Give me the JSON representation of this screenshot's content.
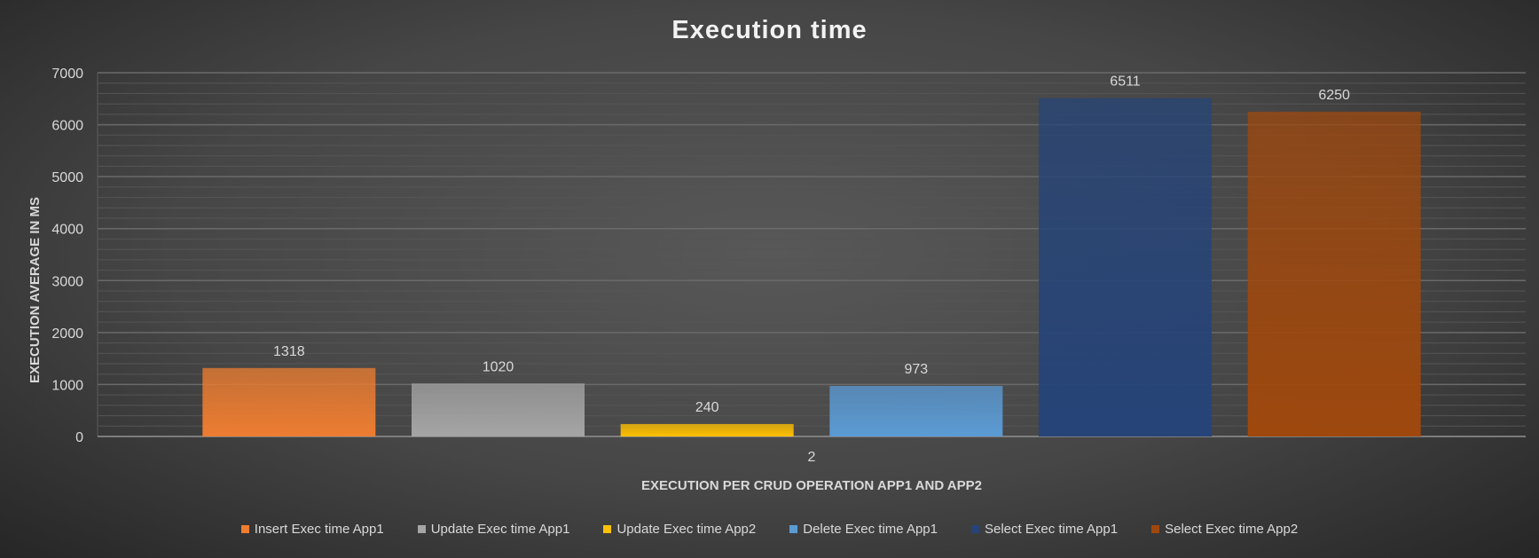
{
  "chart_data": {
    "type": "bar",
    "title": "Execution time",
    "xlabel": "EXECUTION PER CRUD OPERATION APP1 AND APP2",
    "ylabel": "EXECUTION  AVERAGE IN MS",
    "categories": [
      "2"
    ],
    "ylim": [
      0,
      7000
    ],
    "yticks": [
      "0",
      "1000",
      "2000",
      "3000",
      "4000",
      "5000",
      "6000",
      "7000"
    ],
    "grid": true,
    "legend_position": "bottom",
    "series": [
      {
        "name": "Insert Exec time App1",
        "values": [
          1318
        ],
        "color": "#ed7d31"
      },
      {
        "name": "Update Exec time App1",
        "values": [
          1020
        ],
        "color": "#a5a5a5"
      },
      {
        "name": "Update Exec time App2",
        "values": [
          240
        ],
        "color": "#ffc000"
      },
      {
        "name": "Delete Exec time App1",
        "values": [
          973
        ],
        "color": "#5b9bd5"
      },
      {
        "name": "Select Exec time App1",
        "values": [
          6511
        ],
        "color": "#264478"
      },
      {
        "name": "Select Exec time App2",
        "values": [
          6250
        ],
        "color": "#9e480e"
      }
    ]
  }
}
